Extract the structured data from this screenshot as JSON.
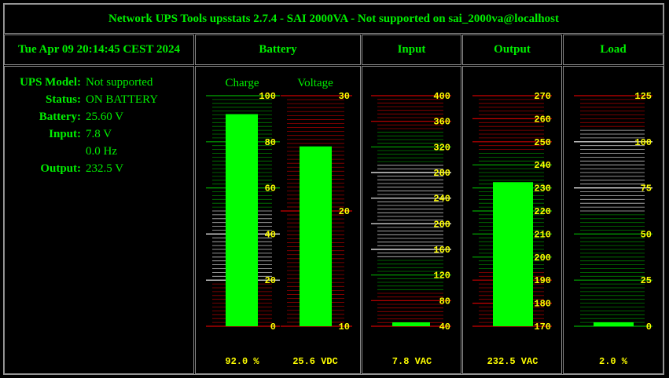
{
  "title": "Network UPS Tools upsstats 2.7.4 - SAI 2000VA - Not supported on sai_2000va@localhost",
  "timestamp": "Tue Apr 09 20:14:45 CEST 2024",
  "headers": {
    "battery": "Battery",
    "input": "Input",
    "output": "Output",
    "load": "Load"
  },
  "info": {
    "model_label": "UPS Model:",
    "model_value": "Not supported",
    "status_label": "Status:",
    "status_value": "ON BATTERY",
    "battery_label": "Battery:",
    "battery_value": "25.60 V",
    "input_label": "Input:",
    "input_value": "7.8 V",
    "freq_value": "0.0 Hz",
    "output_label": "Output:",
    "output_value": "232.5 V"
  },
  "colors": {
    "text": "#00ee00",
    "bar": "#00ff00",
    "tick": "#ffff00",
    "red": "#cc0000",
    "green_line": "#00aa00",
    "white_line": "#ffffff"
  },
  "gauges": {
    "charge": {
      "label": "Charge",
      "readout": "92.0 %",
      "value": 92.0,
      "min": 0,
      "max": 100,
      "ticks": [
        "100",
        "80",
        "60",
        "40",
        "20",
        "0"
      ]
    },
    "voltage": {
      "label": "Voltage",
      "readout": "25.6 VDC",
      "value": 25.6,
      "min": 10,
      "max": 30,
      "ticks": [
        "30",
        "20",
        "10"
      ]
    },
    "input": {
      "readout": "7.8 VAC",
      "value": 7.8,
      "min": 40,
      "max": 400,
      "ticks": [
        "400",
        "360",
        "320",
        "280",
        "240",
        "200",
        "160",
        "120",
        "80",
        "40"
      ]
    },
    "output": {
      "readout": "232.5 VAC",
      "value": 232.5,
      "min": 170,
      "max": 270,
      "ticks": [
        "270",
        "260",
        "250",
        "240",
        "230",
        "220",
        "210",
        "200",
        "190",
        "180",
        "170"
      ]
    },
    "load": {
      "readout": "2.0 %",
      "value": 2.0,
      "min": 0,
      "max": 125,
      "ticks": [
        "125",
        "100",
        "75",
        "50",
        "25",
        "0"
      ]
    }
  }
}
